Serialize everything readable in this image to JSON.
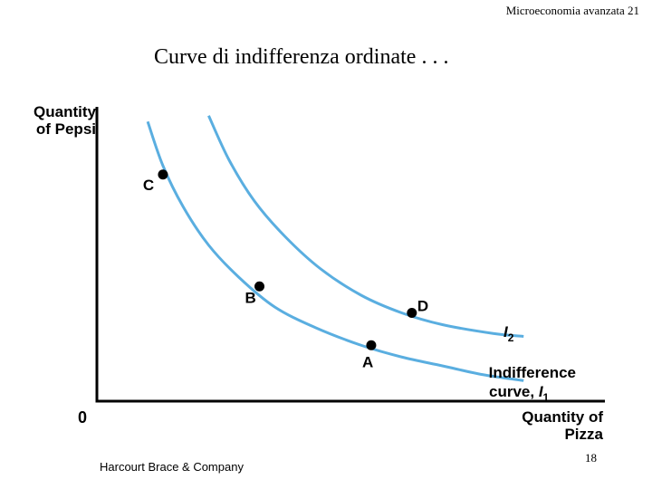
{
  "header": {
    "text": "Microeconomia avanzata 21"
  },
  "title": "Curve di indifferenza ordinate . . .",
  "footer": {
    "publisher": "Harcourt Brace & Company",
    "page_number": "18"
  },
  "colors": {
    "curve": "#5aaee0",
    "axis": "#000000",
    "point": "#000000"
  },
  "chart_data": {
    "type": "line",
    "title": "Curve di indifferenza ordinate . . .",
    "xlabel": "Quantity of Pizza",
    "ylabel": "Quantity of Pepsi",
    "origin_label": "0",
    "xlim": [
      0,
      100
    ],
    "ylim": [
      0,
      100
    ],
    "grid": false,
    "series": [
      {
        "name": "Indifference curve, I1",
        "label_text": "Indifference curve,",
        "label_symbol": "I",
        "label_sub": "1",
        "x": [
          10,
          13,
          17,
          22,
          28,
          35,
          43,
          52,
          60,
          68,
          76,
          84
        ],
        "y": [
          95,
          80,
          66,
          53,
          42,
          32,
          25,
          19,
          15,
          12,
          9,
          7
        ]
      },
      {
        "name": "I2",
        "label_symbol": "I",
        "label_sub": "2",
        "x": [
          22,
          26,
          31,
          37,
          44,
          52,
          60,
          68,
          78,
          84
        ],
        "y": [
          97,
          82,
          68,
          56,
          45,
          36,
          30,
          26,
          23,
          22
        ]
      }
    ],
    "points": [
      {
        "label": "C",
        "x": 13,
        "y": 77,
        "curve": "I1"
      },
      {
        "label": "B",
        "x": 32,
        "y": 39,
        "curve": "I1"
      },
      {
        "label": "A",
        "x": 54,
        "y": 19,
        "curve": "I1"
      },
      {
        "label": "D",
        "x": 62,
        "y": 30,
        "curve": "I2"
      }
    ]
  }
}
